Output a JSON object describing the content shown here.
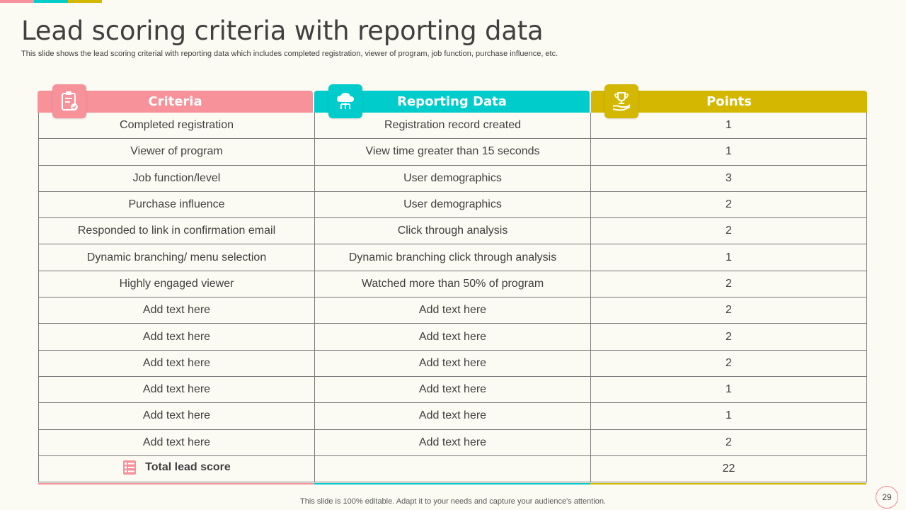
{
  "title": "Lead scoring criteria with reporting data",
  "subtitle": "This slide shows the lead scoring criterial with reporting data which includes completed registration, viewer of program, job function, purchase influence, etc.",
  "colors": {
    "criteria": "#f7919a",
    "reporting": "#00cccc",
    "points": "#d4b700"
  },
  "headers": {
    "criteria": "Criteria",
    "reporting": "Reporting Data",
    "points": "Points"
  },
  "icons": {
    "criteria": "clipboard-check-icon",
    "reporting": "cloud-network-icon",
    "points": "trophy-hand-icon",
    "total": "list-icon"
  },
  "rows": [
    {
      "criteria": "Completed registration",
      "reporting": "Registration record created",
      "points": "1"
    },
    {
      "criteria": "Viewer of program",
      "reporting": "View time greater than  15 seconds",
      "points": "1"
    },
    {
      "criteria": "Job function/level",
      "reporting": "User demographics",
      "points": "3"
    },
    {
      "criteria": "Purchase influence",
      "reporting": "User demographics",
      "points": "2"
    },
    {
      "criteria": "Responded to link in confirmation email",
      "reporting": "Click through  analysis",
      "points": "2"
    },
    {
      "criteria": "Dynamic branching/  menu  selection",
      "reporting": "Dynamic branching  click through  analysis",
      "points": "1"
    },
    {
      "criteria": "Highly engaged viewer",
      "reporting": "Watched more than 50% of program",
      "points": "2"
    },
    {
      "criteria": "Add text here",
      "reporting": "Add text here",
      "points": "2"
    },
    {
      "criteria": "Add text here",
      "reporting": "Add text here",
      "points": "2"
    },
    {
      "criteria": "Add text here",
      "reporting": "Add text here",
      "points": "2"
    },
    {
      "criteria": "Add text here",
      "reporting": "Add text here",
      "points": "1"
    },
    {
      "criteria": "Add text here",
      "reporting": "Add text here",
      "points": "1"
    },
    {
      "criteria": "Add text here",
      "reporting": "Add text here",
      "points": "2"
    }
  ],
  "total": {
    "label": "Total lead score",
    "reporting": "",
    "points": "22"
  },
  "footer": "This slide is 100% editable. Adapt it to your needs and capture your audience's attention.",
  "page_number": "29"
}
